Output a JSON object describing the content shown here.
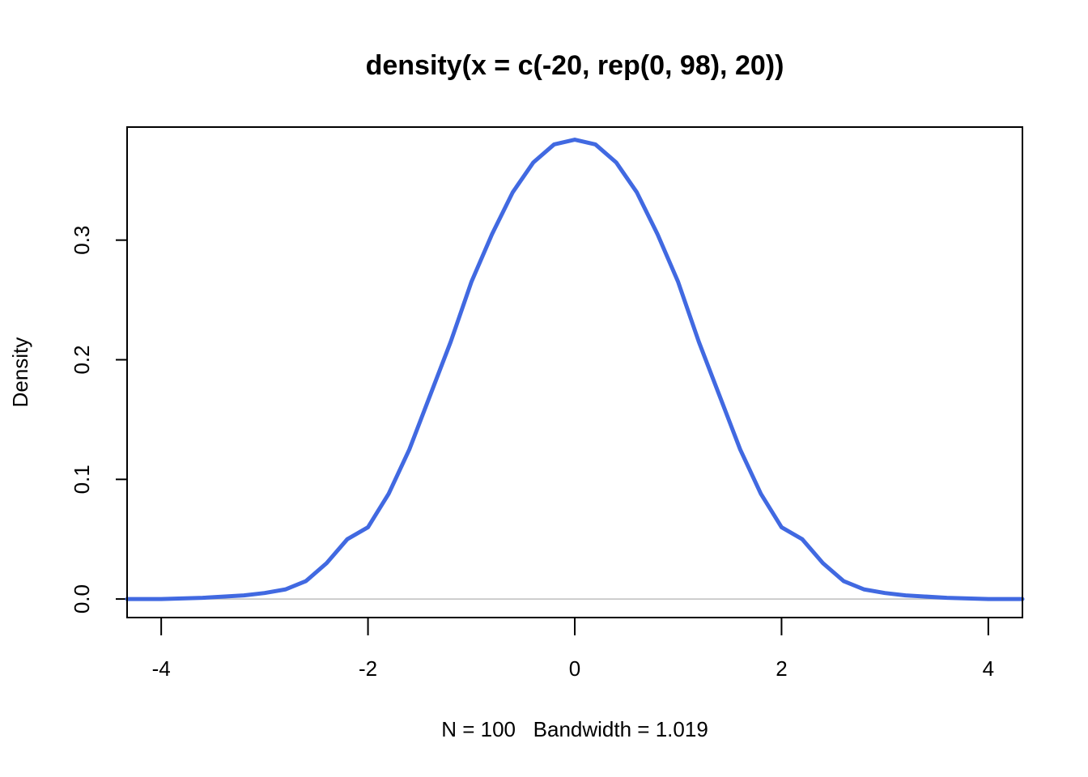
{
  "chart_data": {
    "type": "line",
    "title": "density(x = c(-20, rep(0, 98), 20))",
    "xlabel": "N = 100   Bandwidth = 1.019",
    "ylabel": "Density",
    "xlim": [
      -4.33,
      4.33
    ],
    "ylim": [
      -0.0155,
      0.3945
    ],
    "x_ticks": [
      -4,
      -2,
      0,
      2,
      4
    ],
    "x_tick_labels": [
      "-4",
      "-2",
      "0",
      "2",
      "4"
    ],
    "y_ticks": [
      0.0,
      0.1,
      0.2,
      0.3
    ],
    "y_tick_labels": [
      "0.0",
      "0.1",
      "0.2",
      "0.3"
    ],
    "grid": false,
    "baseline_y": 0,
    "series": [
      {
        "color": "#4169e1",
        "x": [
          -4.33,
          -4.0,
          -3.6,
          -3.2,
          -3.0,
          -2.8,
          -2.6,
          -2.4,
          -2.2,
          -2.0,
          -1.8,
          -1.6,
          -1.4,
          -1.2,
          -1.0,
          -0.8,
          -0.6,
          -0.4,
          -0.2,
          0.0,
          0.2,
          0.4,
          0.6,
          0.8,
          1.0,
          1.2,
          1.4,
          1.6,
          1.8,
          2.0,
          2.2,
          2.4,
          2.6,
          2.8,
          3.0,
          3.2,
          3.6,
          4.0,
          4.33
        ],
        "y": [
          0.0,
          0.0,
          0.001,
          0.003,
          0.005,
          0.008,
          0.015,
          0.03,
          0.05,
          0.06,
          0.088,
          0.125,
          0.17,
          0.215,
          0.265,
          0.305,
          0.34,
          0.365,
          0.38,
          0.384,
          0.38,
          0.365,
          0.34,
          0.305,
          0.265,
          0.215,
          0.17,
          0.125,
          0.088,
          0.06,
          0.05,
          0.03,
          0.015,
          0.008,
          0.005,
          0.003,
          0.001,
          0.0,
          0.0
        ]
      }
    ],
    "colors": {
      "line": "#4169e1",
      "baseline": "#bebebe",
      "axis": "#000000"
    }
  }
}
